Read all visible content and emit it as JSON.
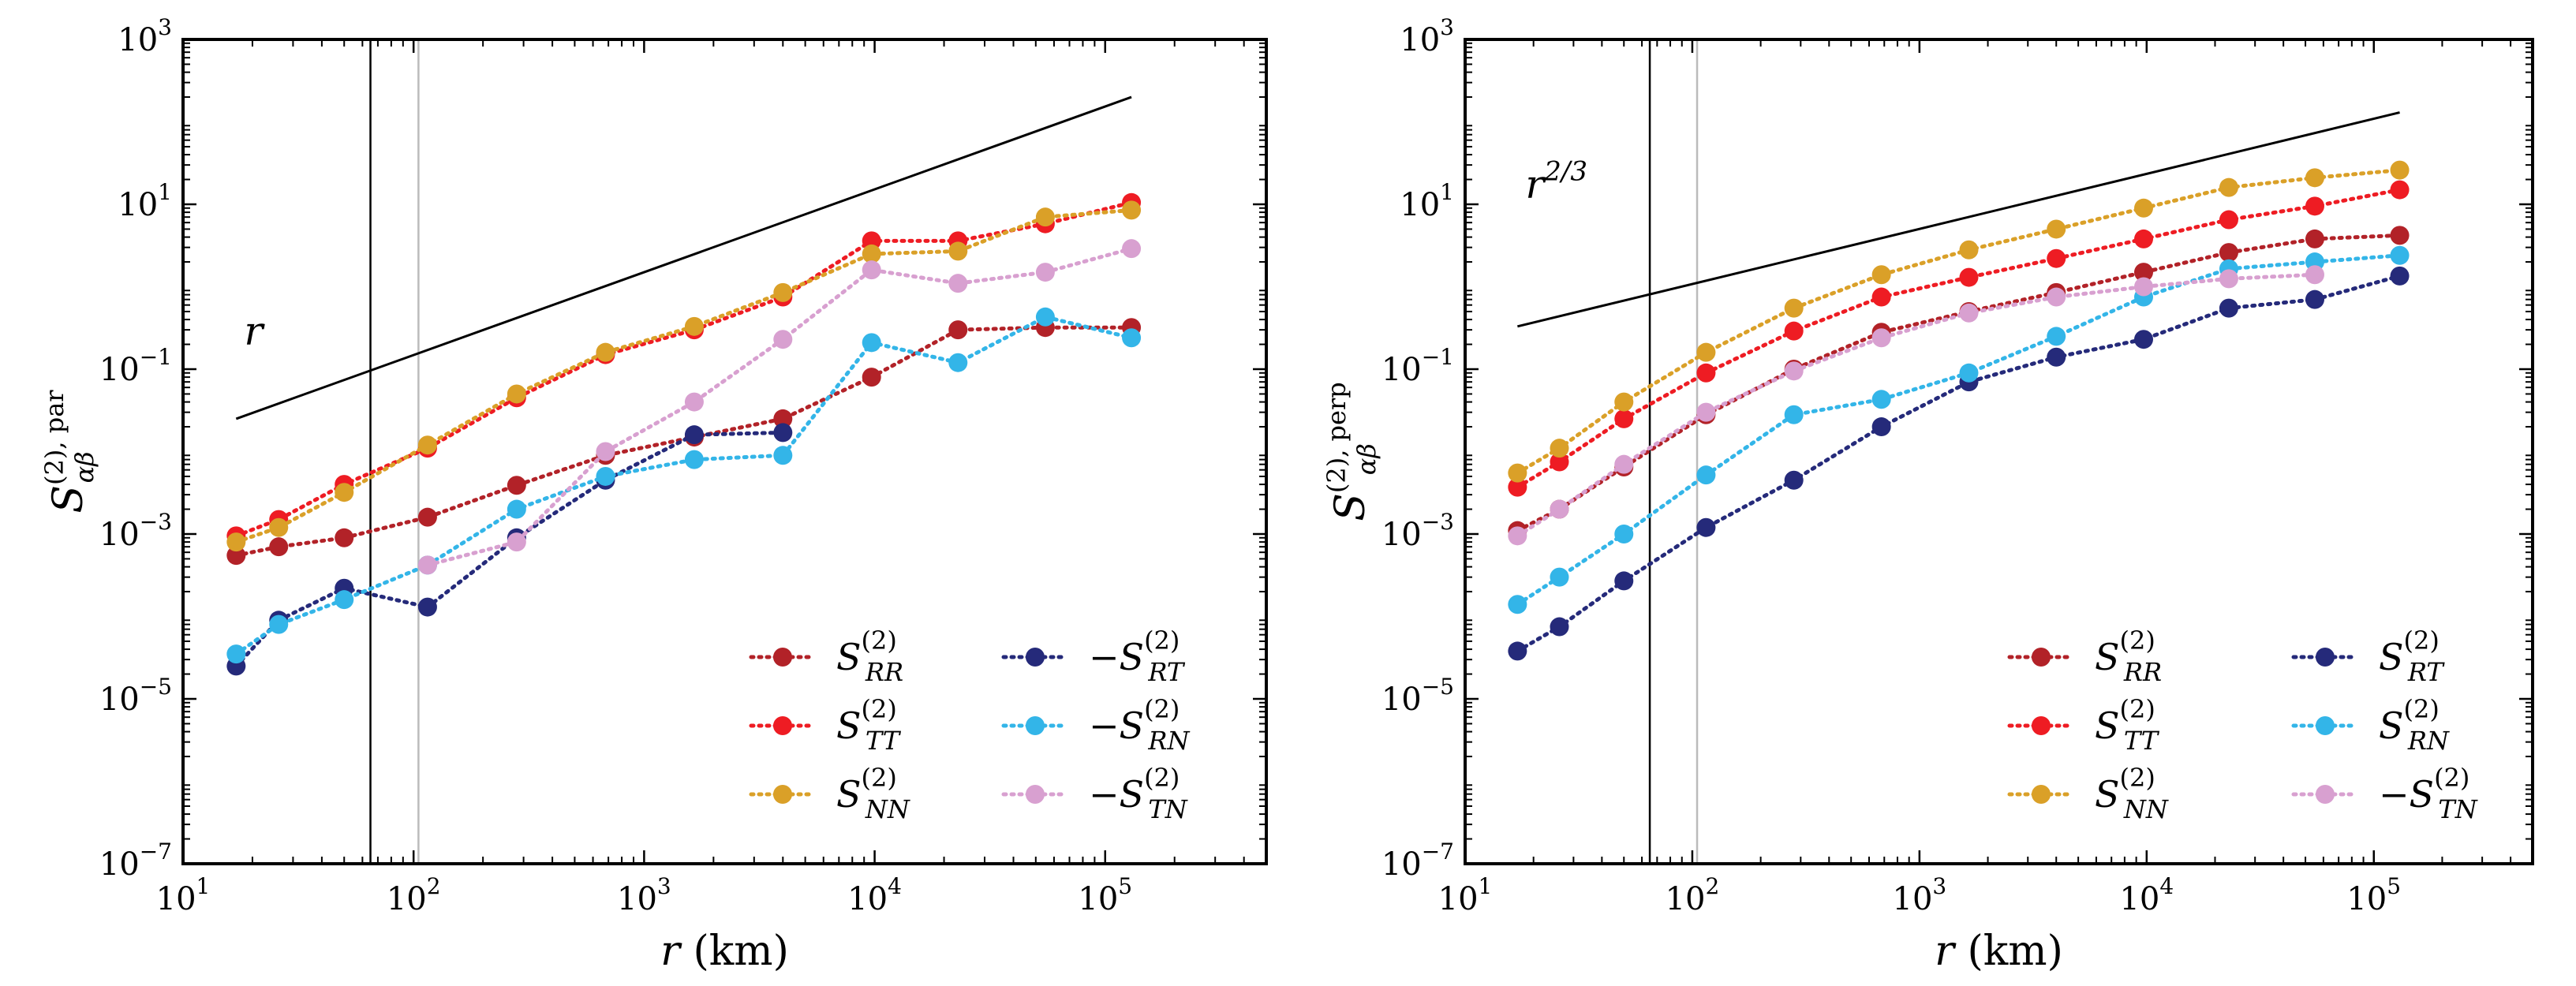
{
  "chart_data": [
    {
      "type": "line",
      "panel": "left",
      "xscale": "log",
      "yscale": "log",
      "xlim": [
        10,
        500000
      ],
      "ylim": [
        1e-07,
        1000
      ],
      "xticks": [
        {
          "value": 10,
          "label": "10",
          "exp": "1"
        },
        {
          "value": 100,
          "label": "10",
          "exp": "2"
        },
        {
          "value": 1000,
          "label": "10",
          "exp": "3"
        },
        {
          "value": 10000,
          "label": "10",
          "exp": "4"
        },
        {
          "value": 100000,
          "label": "10",
          "exp": "5"
        }
      ],
      "yticks": [
        {
          "value": 1e-07,
          "label": "10",
          "exp": "−7"
        },
        {
          "value": 1e-05,
          "label": "10",
          "exp": "−5"
        },
        {
          "value": 0.001,
          "label": "10",
          "exp": "−3"
        },
        {
          "value": 0.1,
          "label": "10",
          "exp": "−1"
        },
        {
          "value": 10,
          "label": "10",
          "exp": "1"
        },
        {
          "value": 1000,
          "label": "10",
          "exp": "3"
        }
      ],
      "xlabel": "r",
      "xlabel_unit": " (km)",
      "ylabel": "S",
      "ylabel_sup": "(2), par",
      "ylabel_sub": "αβ",
      "vlines": [
        {
          "x": 65,
          "color": "#000000"
        },
        {
          "x": 105,
          "color": "#bbbbbb"
        }
      ],
      "reference_line": {
        "x": [
          17,
          130000
        ],
        "y": [
          0.025,
          200
        ],
        "label": "r",
        "label_sup": ""
      },
      "legend_position": "lower-right",
      "x": [
        17,
        26,
        50,
        115,
        280,
        680,
        1650,
        4000,
        9700,
        23000,
        55000,
        130000
      ],
      "series": [
        {
          "name": "S",
          "prefix": "",
          "sup": "(2)",
          "sub": "RR",
          "color": "#b22228",
          "legend_col": 0,
          "legend_row": 0,
          "values": [
            0.00055,
            0.0007,
            0.0009,
            0.0016,
            0.0039,
            0.009,
            0.015,
            0.025,
            0.08,
            0.3,
            0.32,
            0.32
          ]
        },
        {
          "name": "S",
          "prefix": "",
          "sup": "(2)",
          "sub": "TT",
          "color": "#ee1c23",
          "legend_col": 0,
          "legend_row": 1,
          "values": [
            0.00095,
            0.0015,
            0.004,
            0.011,
            0.045,
            0.15,
            0.3,
            0.75,
            3.6,
            3.6,
            5.8,
            10.5
          ]
        },
        {
          "name": "S",
          "prefix": "",
          "sup": "(2)",
          "sub": "NN",
          "color": "#daa028",
          "legend_col": 0,
          "legend_row": 2,
          "values": [
            0.0008,
            0.0012,
            0.0032,
            0.012,
            0.05,
            0.16,
            0.33,
            0.85,
            2.5,
            2.7,
            7.0,
            8.5
          ]
        },
        {
          "name": "S",
          "prefix": "−",
          "sup": "(2)",
          "sub": "RT",
          "color": "#252a7a",
          "legend_col": 1,
          "legend_row": 0,
          "values": [
            2.5e-05,
            9e-05,
            0.00022,
            0.00013,
            0.0009,
            0.0045,
            0.016,
            0.017,
            null,
            null,
            null,
            null
          ]
        },
        {
          "name": "S",
          "prefix": "−",
          "sup": "(2)",
          "sub": "RN",
          "color": "#33b5e8",
          "legend_col": 1,
          "legend_row": 1,
          "values": [
            3.5e-05,
            8e-05,
            0.00016,
            0.00042,
            0.002,
            0.005,
            0.008,
            0.009,
            0.21,
            0.12,
            0.43,
            0.24
          ]
        },
        {
          "name": "S",
          "prefix": "−",
          "sup": "(2)",
          "sub": "TN",
          "color": "#d8a0d0",
          "legend_col": 1,
          "legend_row": 2,
          "values": [
            null,
            null,
            null,
            0.00042,
            0.0008,
            0.01,
            0.04,
            0.23,
            1.6,
            1.1,
            1.5,
            2.9
          ]
        }
      ]
    },
    {
      "type": "line",
      "panel": "right",
      "xscale": "log",
      "yscale": "log",
      "xlim": [
        10,
        500000
      ],
      "ylim": [
        1e-07,
        1000
      ],
      "xticks": [
        {
          "value": 10,
          "label": "10",
          "exp": "1"
        },
        {
          "value": 100,
          "label": "10",
          "exp": "2"
        },
        {
          "value": 1000,
          "label": "10",
          "exp": "3"
        },
        {
          "value": 10000,
          "label": "10",
          "exp": "4"
        },
        {
          "value": 100000,
          "label": "10",
          "exp": "5"
        }
      ],
      "yticks": [
        {
          "value": 1e-07,
          "label": "10",
          "exp": "−7"
        },
        {
          "value": 1e-05,
          "label": "10",
          "exp": "−5"
        },
        {
          "value": 0.001,
          "label": "10",
          "exp": "−3"
        },
        {
          "value": 0.1,
          "label": "10",
          "exp": "−1"
        },
        {
          "value": 10,
          "label": "10",
          "exp": "1"
        },
        {
          "value": 1000,
          "label": "10",
          "exp": "3"
        }
      ],
      "xlabel": "r",
      "xlabel_unit": " (km)",
      "ylabel": "S",
      "ylabel_sup": "(2), perp",
      "ylabel_sub": "αβ",
      "vlines": [
        {
          "x": 65,
          "color": "#000000"
        },
        {
          "x": 105,
          "color": "#bbbbbb"
        }
      ],
      "reference_line": {
        "x": [
          17,
          130000
        ],
        "y": [
          0.33,
          130
        ],
        "label": "r",
        "label_sup": "2/3"
      },
      "legend_position": "lower-right",
      "x": [
        17,
        26,
        50,
        115,
        280,
        680,
        1650,
        4000,
        9700,
        23000,
        55000,
        130000
      ],
      "series": [
        {
          "name": "S",
          "prefix": "",
          "sup": "(2)",
          "sub": "RR",
          "color": "#b22228",
          "legend_col": 0,
          "legend_row": 0,
          "values": [
            0.0011,
            0.002,
            0.0065,
            0.028,
            0.1,
            0.28,
            0.5,
            0.85,
            1.5,
            2.6,
            3.8,
            4.2
          ]
        },
        {
          "name": "S",
          "prefix": "",
          "sup": "(2)",
          "sub": "TT",
          "color": "#ee1c23",
          "legend_col": 0,
          "legend_row": 1,
          "values": [
            0.0037,
            0.0075,
            0.025,
            0.09,
            0.29,
            0.75,
            1.3,
            2.2,
            3.8,
            6.5,
            9.5,
            15
          ]
        },
        {
          "name": "S",
          "prefix": "",
          "sup": "(2)",
          "sub": "NN",
          "color": "#daa028",
          "legend_col": 0,
          "legend_row": 2,
          "values": [
            0.0055,
            0.011,
            0.04,
            0.16,
            0.55,
            1.4,
            2.8,
            5.0,
            9.0,
            16,
            21,
            26
          ]
        },
        {
          "name": "S",
          "prefix": "",
          "sup": "(2)",
          "sub": "RT",
          "color": "#252a7a",
          "legend_col": 1,
          "legend_row": 0,
          "values": [
            3.8e-05,
            7.5e-05,
            0.00027,
            0.0012,
            0.0045,
            0.02,
            0.07,
            0.14,
            0.23,
            0.55,
            0.7,
            1.35
          ]
        },
        {
          "name": "S",
          "prefix": "",
          "sup": "(2)",
          "sub": "RN",
          "color": "#33b5e8",
          "legend_col": 1,
          "legend_row": 1,
          "values": [
            0.00014,
            0.0003,
            0.001,
            0.0052,
            0.028,
            0.043,
            0.09,
            0.25,
            0.75,
            1.65,
            2.0,
            2.4
          ]
        },
        {
          "name": "S",
          "prefix": "−",
          "sup": "(2)",
          "sub": "TN",
          "color": "#d8a0d0",
          "legend_col": 1,
          "legend_row": 2,
          "values": [
            0.00095,
            0.002,
            0.007,
            0.03,
            0.095,
            0.24,
            0.48,
            0.75,
            1.0,
            1.25,
            1.4,
            null
          ]
        }
      ]
    }
  ]
}
